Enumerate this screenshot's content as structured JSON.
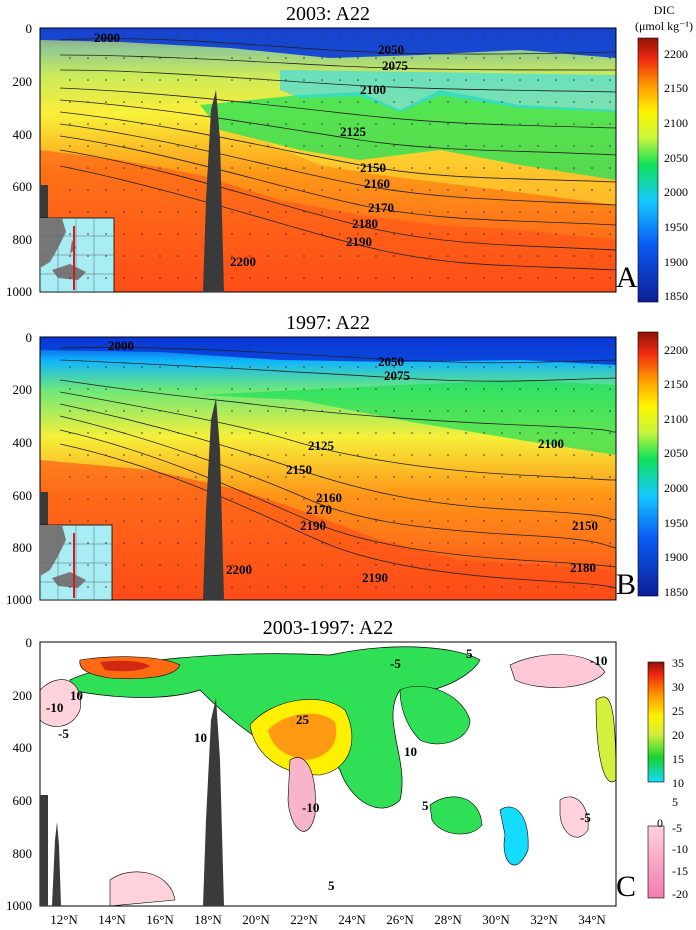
{
  "chart_data": [
    {
      "type": "heatmap",
      "title": "2003: A22",
      "panel_label": "A",
      "colorbar_title": "DIC",
      "colorbar_units": "(μmol kg⁻¹)",
      "colorbar_ticks": [
        1850,
        1900,
        1950,
        2000,
        2050,
        2100,
        2150,
        2200
      ],
      "colorbar_range": [
        1850,
        2230
      ],
      "y_ticks": [
        0,
        200,
        400,
        600,
        800,
        1000
      ],
      "y_range": [
        0,
        1000
      ],
      "y_direction": "depth increasing downward",
      "x_range_degN": [
        11,
        35
      ],
      "contour_labels": [
        "2000",
        "2050",
        "2075",
        "2100",
        "2125",
        "2150",
        "2160",
        "2170",
        "2180",
        "2190",
        "2200"
      ],
      "labeled_contours": [
        {
          "label": "2000",
          "lat": 13.7,
          "depth": 30
        },
        {
          "label": "2050",
          "lat": 25.2,
          "depth": 60
        },
        {
          "label": "2075",
          "lat": 24.1,
          "depth": 150
        },
        {
          "label": "2100",
          "lat": 23.5,
          "depth": 220
        },
        {
          "label": "2125",
          "lat": 23.0,
          "depth": 380
        },
        {
          "label": "2150",
          "lat": 24.0,
          "depth": 510
        },
        {
          "label": "2160",
          "lat": 25.3,
          "depth": 570
        },
        {
          "label": "2170",
          "lat": 25.6,
          "depth": 680
        },
        {
          "label": "2180",
          "lat": 24.8,
          "depth": 770
        },
        {
          "label": "2190",
          "lat": 24.6,
          "depth": 860
        },
        {
          "label": "2200",
          "lat": 19.5,
          "depth": 930
        }
      ]
    },
    {
      "type": "heatmap",
      "title": "1997: A22",
      "panel_label": "B",
      "colorbar_ticks": [
        1850,
        1900,
        1950,
        2000,
        2050,
        2100,
        2150,
        2200
      ],
      "colorbar_range": [
        1850,
        2230
      ],
      "y_ticks": [
        0,
        200,
        400,
        600,
        800,
        1000
      ],
      "y_range": [
        0,
        1000
      ],
      "x_range_degN": [
        11,
        35
      ],
      "contour_labels": [
        "2000",
        "2050",
        "2075",
        "2100",
        "2125",
        "2150",
        "2160",
        "2170",
        "2180",
        "2190",
        "2200"
      ],
      "labeled_contours": [
        {
          "label": "2000",
          "lat": 13.8,
          "depth": 30
        },
        {
          "label": "2050",
          "lat": 25.5,
          "depth": 90
        },
        {
          "label": "2075",
          "lat": 24.2,
          "depth": 145
        },
        {
          "label": "2100",
          "lat": 31.6,
          "depth": 400
        },
        {
          "label": "2125",
          "lat": 21.7,
          "depth": 430
        },
        {
          "label": "2150",
          "lat": 20.9,
          "depth": 530
        },
        {
          "label": "2150",
          "lat": 32.7,
          "depth": 750
        },
        {
          "label": "2160",
          "lat": 22.5,
          "depth": 600
        },
        {
          "label": "2170",
          "lat": 22.1,
          "depth": 630
        },
        {
          "label": "2180",
          "lat": 32.2,
          "depth": 860
        },
        {
          "label": "2190",
          "lat": 22.9,
          "depth": 690
        },
        {
          "label": "2190",
          "lat": 23.9,
          "depth": 930
        },
        {
          "label": "2200",
          "lat": 19.9,
          "depth": 930
        }
      ]
    },
    {
      "type": "heatmap",
      "title": "2003-1997: A22",
      "panel_label": "C",
      "colorbar_ticks": [
        35,
        30,
        25,
        20,
        15,
        10,
        5,
        0,
        -5,
        -10,
        -15,
        -20
      ],
      "colorbar_range": [
        -20,
        35
      ],
      "y_ticks": [
        0,
        200,
        400,
        600,
        800,
        1000
      ],
      "y_range": [
        0,
        1000
      ],
      "x_ticks": [
        "12°N",
        "14°N",
        "16°N",
        "18°N",
        "20°N",
        "22°N",
        "24°N",
        "26°N",
        "28°N",
        "30°N",
        "32°N",
        "34°N"
      ],
      "x_range_degN": [
        11,
        35
      ],
      "contour_labels": [
        "-10",
        "-5",
        "5",
        "10",
        "15",
        "20",
        "25"
      ],
      "labeled_contours": [
        {
          "label": "5",
          "lat": 23.9,
          "depth": 50
        },
        {
          "label": "-5",
          "lat": 20.6,
          "depth": 80
        },
        {
          "label": "10",
          "lat": 13.5,
          "depth": 180
        },
        {
          "label": "25",
          "lat": 21.3,
          "depth": 300
        },
        {
          "label": "10",
          "lat": 18.7,
          "depth": 350
        },
        {
          "label": "10",
          "lat": 23.3,
          "depth": 430
        },
        {
          "label": "5",
          "lat": 24.3,
          "depth": 620
        },
        {
          "label": "-10",
          "lat": 22.0,
          "depth": 620
        },
        {
          "label": "-10",
          "lat": 12.2,
          "depth": 230
        },
        {
          "label": "-5",
          "lat": 12.1,
          "depth": 330
        },
        {
          "label": "-5",
          "lat": 33.2,
          "depth": 620
        },
        {
          "label": "-10",
          "lat": 34.2,
          "depth": 70
        },
        {
          "label": "5",
          "lat": 24.5,
          "depth": 980
        }
      ]
    }
  ]
}
